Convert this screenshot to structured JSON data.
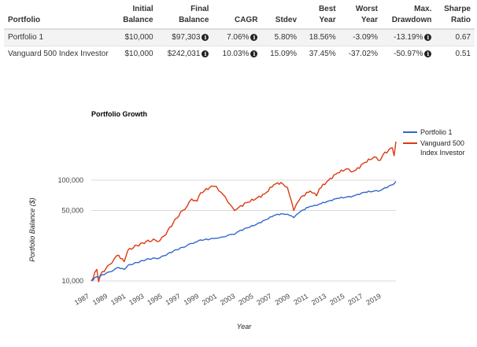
{
  "table": {
    "headers": [
      {
        "line1": "",
        "line2": "Portfolio"
      },
      {
        "line1": "Initial",
        "line2": "Balance"
      },
      {
        "line1": "Final",
        "line2": "Balance"
      },
      {
        "line1": "",
        "line2": "CAGR"
      },
      {
        "line1": "",
        "line2": "Stdev"
      },
      {
        "line1": "Best",
        "line2": "Year"
      },
      {
        "line1": "Worst",
        "line2": "Year"
      },
      {
        "line1": "Max.",
        "line2": "Drawdown"
      },
      {
        "line1": "Sharpe",
        "line2": "Ratio"
      }
    ],
    "rows": [
      {
        "portfolio": "Portfolio 1",
        "initial_balance": "$10,000",
        "final_balance": "$97,303",
        "cagr": "7.06%",
        "stdev": "5.80%",
        "best_year": "18.56%",
        "worst_year": "-3.09%",
        "max_drawdown": "-13.19%",
        "sharpe_ratio": "0.67"
      },
      {
        "portfolio": "Vanguard 500 Index Investor",
        "initial_balance": "$10,000",
        "final_balance": "$242,031",
        "cagr": "10.03%",
        "stdev": "15.09%",
        "best_year": "37.45%",
        "worst_year": "-37.02%",
        "max_drawdown": "-50.97%",
        "sharpe_ratio": "0.51"
      }
    ],
    "info_icon": "i"
  },
  "chart_data": {
    "type": "line",
    "title": "Portfolio Growth",
    "xlabel": "Year",
    "ylabel": "Portfolio Balance ($)",
    "yscale": "log",
    "ylim": [
      9000,
      260000
    ],
    "yticks": [
      10000,
      50000,
      100000
    ],
    "ytick_labels": [
      "10,000",
      "50,000",
      "100,000"
    ],
    "xticks": [
      "1987",
      "1989",
      "1991",
      "1993",
      "1995",
      "1997",
      "1999",
      "2001",
      "2003",
      "2005",
      "2007",
      "2009",
      "2011",
      "2013",
      "2015",
      "2017",
      "2019"
    ],
    "grid": true,
    "legend_position": "right",
    "x": [
      1987.0,
      1987.6,
      1987.8,
      1988.0,
      1989.0,
      1989.5,
      1990.0,
      1990.6,
      1990.8,
      1991.0,
      1992.0,
      1993.0,
      1994.0,
      1994.5,
      1995.0,
      1996.0,
      1997.0,
      1997.5,
      1998.0,
      1998.6,
      1999.0,
      2000.0,
      2000.7,
      2001.0,
      2001.7,
      2002.0,
      2002.7,
      2003.0,
      2004.0,
      2005.0,
      2006.0,
      2007.0,
      2007.8,
      2008.5,
      2009.2,
      2009.5,
      2010.0,
      2011.0,
      2011.7,
      2012.0,
      2013.0,
      2014.0,
      2015.0,
      2015.7,
      2016.0,
      2017.0,
      2018.0,
      2018.7,
      2019.0,
      2020.0,
      2020.2,
      2020.4
    ],
    "series": [
      {
        "name": "Portfolio 1",
        "color": "#3366cc",
        "values": [
          10000,
          11000,
          10800,
          11200,
          12300,
          12900,
          13600,
          13000,
          13400,
          14200,
          15200,
          16300,
          16800,
          16900,
          17800,
          19800,
          21500,
          22500,
          23600,
          24500,
          25500,
          26000,
          26500,
          26700,
          27500,
          28500,
          29000,
          30500,
          33500,
          36000,
          40000,
          44500,
          46500,
          46000,
          42500,
          45500,
          49500,
          55000,
          56000,
          58000,
          62000,
          66000,
          68000,
          69500,
          71000,
          76000,
          78000,
          79000,
          82000,
          90000,
          92000,
          97303
        ]
      },
      {
        "name": "Vanguard 500 Index Investor",
        "color": "#dc3912",
        "values": [
          10000,
          13000,
          9800,
          11500,
          14500,
          16500,
          18000,
          15500,
          17500,
          20000,
          22500,
          24500,
          25500,
          25000,
          28000,
          38000,
          50000,
          55000,
          65000,
          62000,
          75000,
          85000,
          87000,
          78000,
          68000,
          60000,
          50000,
          52000,
          60000,
          65000,
          73000,
          90000,
          95000,
          85000,
          50000,
          58000,
          68000,
          78000,
          70000,
          82000,
          100000,
          118000,
          130000,
          122000,
          126000,
          150000,
          170000,
          158000,
          180000,
          210000,
          175000,
          242031
        ]
      }
    ]
  }
}
